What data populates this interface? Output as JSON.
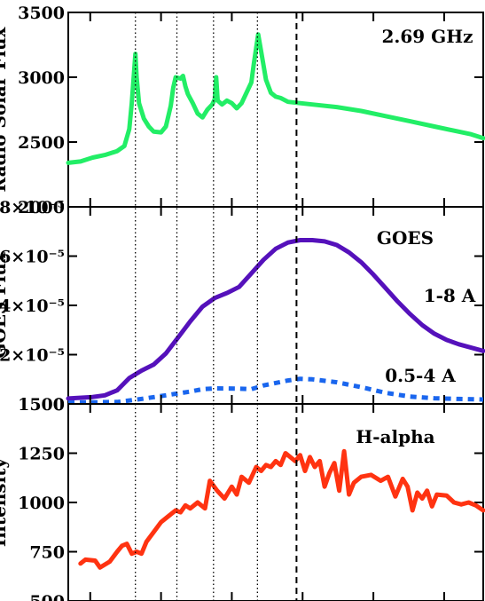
{
  "chart_data": [
    {
      "type": "line",
      "panel_label": "2.69 GHz",
      "ylabel": "Radio Solar Flux",
      "ylim": [
        2000,
        3500
      ],
      "yticks": [
        {
          "value": 2000,
          "label": "2000"
        },
        {
          "value": 2500,
          "label": "2500"
        },
        {
          "value": 3000,
          "label": "3000"
        },
        {
          "value": 3500,
          "label": "3500"
        }
      ],
      "series": [
        {
          "color": "#22ee66",
          "points": [
            [
              0,
              2340
            ],
            [
              5,
              2350
            ],
            [
              10,
              2380
            ],
            [
              15,
              2400
            ],
            [
              20,
              2430
            ],
            [
              23,
              2470
            ],
            [
              25,
              2600
            ],
            [
              26,
              2800
            ],
            [
              27,
              3050
            ],
            [
              27.5,
              3180
            ],
            [
              28,
              3000
            ],
            [
              29,
              2800
            ],
            [
              31,
              2680
            ],
            [
              33,
              2620
            ],
            [
              35,
              2580
            ],
            [
              38,
              2575
            ],
            [
              40,
              2620
            ],
            [
              42,
              2780
            ],
            [
              43,
              2920
            ],
            [
              44,
              3000
            ],
            [
              46,
              2990
            ],
            [
              47,
              3010
            ],
            [
              48,
              2930
            ],
            [
              49,
              2870
            ],
            [
              51,
              2800
            ],
            [
              53,
              2720
            ],
            [
              55,
              2690
            ],
            [
              57,
              2750
            ],
            [
              59,
              2790
            ],
            [
              60,
              2830
            ],
            [
              60.6,
              3000
            ],
            [
              61.2,
              2820
            ],
            [
              63,
              2790
            ],
            [
              65,
              2820
            ],
            [
              67,
              2800
            ],
            [
              69,
              2760
            ],
            [
              71,
              2800
            ],
            [
              73,
              2880
            ],
            [
              75,
              2960
            ],
            [
              76,
              3100
            ],
            [
              77,
              3230
            ],
            [
              77.8,
              3330
            ],
            [
              79,
              3200
            ],
            [
              81,
              2980
            ],
            [
              83,
              2880
            ],
            [
              85,
              2850
            ],
            [
              87,
              2840
            ],
            [
              90,
              2810
            ],
            [
              95,
              2800
            ],
            [
              100,
              2790
            ],
            [
              110,
              2770
            ],
            [
              120,
              2740
            ],
            [
              130,
              2700
            ],
            [
              140,
              2660
            ],
            [
              150,
              2620
            ],
            [
              160,
              2580
            ],
            [
              165,
              2560
            ],
            [
              170,
              2530
            ]
          ]
        }
      ]
    },
    {
      "type": "line",
      "panel_label": "GOES",
      "ylabel": "GOES Flux",
      "ylim": [
        0,
        8e-05
      ],
      "yticks": [
        {
          "value": 0,
          "label": "0"
        },
        {
          "value": 2e-05,
          "label": "2×10⁻⁵"
        },
        {
          "value": 4e-05,
          "label": "4×10⁻⁵"
        },
        {
          "value": 6e-05,
          "label": "6×10⁻⁵"
        },
        {
          "value": 8e-05,
          "label": "8×10⁻⁵"
        }
      ],
      "series": [
        {
          "name": "1-8 A",
          "color": "#5511bb",
          "dashed": false,
          "points": [
            [
              0,
              2.2e-06
            ],
            [
              10,
              2.8e-06
            ],
            [
              15,
              3.5e-06
            ],
            [
              20,
              5.5e-06
            ],
            [
              25,
              1.05e-05
            ],
            [
              30,
              1.35e-05
            ],
            [
              35,
              1.6e-05
            ],
            [
              40,
              2.05e-05
            ],
            [
              45,
              2.7e-05
            ],
            [
              50,
              3.35e-05
            ],
            [
              55,
              3.95e-05
            ],
            [
              60,
              4.3e-05
            ],
            [
              65,
              4.5e-05
            ],
            [
              70,
              4.75e-05
            ],
            [
              75,
              5.3e-05
            ],
            [
              80,
              5.85e-05
            ],
            [
              85,
              6.3e-05
            ],
            [
              90,
              6.55e-05
            ],
            [
              95,
              6.65e-05
            ],
            [
              100,
              6.65e-05
            ],
            [
              105,
              6.6e-05
            ],
            [
              110,
              6.45e-05
            ],
            [
              115,
              6.15e-05
            ],
            [
              120,
              5.75e-05
            ],
            [
              125,
              5.25e-05
            ],
            [
              130,
              4.7e-05
            ],
            [
              135,
              4.15e-05
            ],
            [
              140,
              3.65e-05
            ],
            [
              145,
              3.2e-05
            ],
            [
              150,
              2.85e-05
            ],
            [
              155,
              2.6e-05
            ],
            [
              160,
              2.42e-05
            ],
            [
              170,
              2.15e-05
            ]
          ]
        },
        {
          "name": "0.5-4 A",
          "color": "#1a66ee",
          "dashed": true,
          "points": [
            [
              0,
              5e-07
            ],
            [
              20,
              8e-07
            ],
            [
              30,
              2e-06
            ],
            [
              40,
              3.5e-06
            ],
            [
              50,
              5e-06
            ],
            [
              55,
              6e-06
            ],
            [
              60,
              6.3e-06
            ],
            [
              70,
              6.2e-06
            ],
            [
              75,
              6e-06
            ],
            [
              80,
              7.5e-06
            ],
            [
              90,
              9.5e-06
            ],
            [
              95,
              1.02e-05
            ],
            [
              100,
              1e-05
            ],
            [
              110,
              8.8e-06
            ],
            [
              120,
              6.8e-06
            ],
            [
              130,
              4.5e-06
            ],
            [
              140,
              3e-06
            ],
            [
              150,
              2.3e-06
            ],
            [
              160,
              2e-06
            ],
            [
              170,
              1.8e-06
            ]
          ]
        }
      ]
    },
    {
      "type": "line",
      "panel_label": "H-alpha",
      "ylabel": "Intensity",
      "ylim": [
        500,
        1500
      ],
      "yticks": [
        {
          "value": 500,
          "label": "500"
        },
        {
          "value": 750,
          "label": "750"
        },
        {
          "value": 1000,
          "label": "1000"
        },
        {
          "value": 1250,
          "label": "1250"
        },
        {
          "value": 1500,
          "label": "1500"
        }
      ],
      "series": [
        {
          "color": "#ff3311",
          "points": [
            [
              5,
              690
            ],
            [
              7,
              710
            ],
            [
              11,
              705
            ],
            [
              13,
              670
            ],
            [
              17,
              700
            ],
            [
              20,
              750
            ],
            [
              22,
              780
            ],
            [
              24,
              790
            ],
            [
              26,
              740
            ],
            [
              28,
              750
            ],
            [
              30,
              740
            ],
            [
              32,
              800
            ],
            [
              35,
              850
            ],
            [
              38,
              900
            ],
            [
              41,
              930
            ],
            [
              44,
              960
            ],
            [
              46,
              950
            ],
            [
              48,
              985
            ],
            [
              50,
              970
            ],
            [
              53,
              1000
            ],
            [
              56,
              970
            ],
            [
              58,
              1110
            ],
            [
              61,
              1060
            ],
            [
              64,
              1020
            ],
            [
              67,
              1080
            ],
            [
              69,
              1040
            ],
            [
              71,
              1130
            ],
            [
              74,
              1100
            ],
            [
              77,
              1180
            ],
            [
              79,
              1160
            ],
            [
              81,
              1190
            ],
            [
              83,
              1180
            ],
            [
              85,
              1210
            ],
            [
              87,
              1190
            ],
            [
              89,
              1250
            ],
            [
              91,
              1230
            ],
            [
              93,
              1210
            ],
            [
              95,
              1240
            ],
            [
              97,
              1160
            ],
            [
              99,
              1230
            ],
            [
              101,
              1180
            ],
            [
              103,
              1210
            ],
            [
              105,
              1080
            ],
            [
              107,
              1150
            ],
            [
              109,
              1200
            ],
            [
              111,
              1060
            ],
            [
              113,
              1260
            ],
            [
              115,
              1040
            ],
            [
              117,
              1100
            ],
            [
              120,
              1130
            ],
            [
              124,
              1140
            ],
            [
              128,
              1110
            ],
            [
              131,
              1130
            ],
            [
              134,
              1030
            ],
            [
              137,
              1120
            ],
            [
              139,
              1080
            ],
            [
              141,
              960
            ],
            [
              143,
              1050
            ],
            [
              145,
              1020
            ],
            [
              147,
              1060
            ],
            [
              149,
              980
            ],
            [
              151,
              1040
            ],
            [
              155,
              1035
            ],
            [
              158,
              1000
            ],
            [
              161,
              990
            ],
            [
              164,
              1000
            ],
            [
              167,
              985
            ],
            [
              170,
              960
            ]
          ]
        }
      ]
    }
  ],
  "event_times_dotted": [
    27.5,
    44.5,
    59.5,
    77.5
  ],
  "event_time_dashed": 93.5,
  "x_range": [
    0,
    170
  ],
  "x_ticks": [
    9,
    38,
    67,
    96,
    125,
    154
  ]
}
